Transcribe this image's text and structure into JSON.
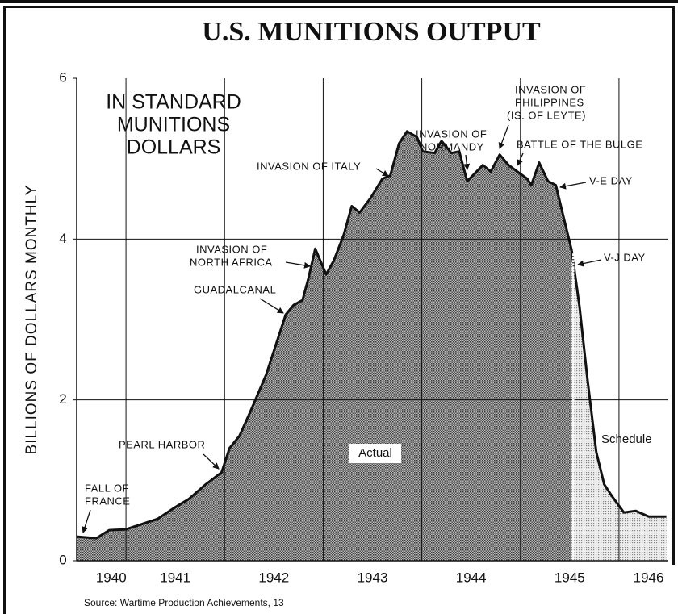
{
  "chart_data": {
    "type": "area",
    "title": "U.S. MUNITIONS OUTPUT",
    "subtitle": [
      "IN STANDARD",
      "MUNITIONS",
      "DOLLARS"
    ],
    "ylabel": "BILLIONS OF DOLLARS MONTHLY",
    "source": "Source: Wartime Production Achievements, 13",
    "xlim": [
      1940.5,
      1946.5
    ],
    "ylim": [
      0,
      6
    ],
    "yticks": [
      0,
      2,
      4,
      6
    ],
    "xgrid": [
      1941,
      1942,
      1943,
      1944,
      1945,
      1946
    ],
    "xticks": [
      {
        "value": 1940.85,
        "label": "1940"
      },
      {
        "value": 1941.5,
        "label": "1941"
      },
      {
        "value": 1942.5,
        "label": "1942"
      },
      {
        "value": 1943.5,
        "label": "1943"
      },
      {
        "value": 1944.5,
        "label": "1944"
      },
      {
        "value": 1945.5,
        "label": "1945"
      },
      {
        "value": 1946.3,
        "label": "1946"
      }
    ],
    "grid": true,
    "series": [
      {
        "name": "Actual",
        "color": "#8a8a8a",
        "x": [
          1940.5,
          1940.7,
          1940.83,
          1941.0,
          1941.15,
          1941.32,
          1941.48,
          1941.64,
          1941.81,
          1941.97,
          1942.05,
          1942.15,
          1942.26,
          1942.42,
          1942.62,
          1942.7,
          1942.79,
          1942.85,
          1942.92,
          1943.03,
          1943.11,
          1943.21,
          1943.29,
          1943.37,
          1943.48,
          1943.6,
          1943.68,
          1943.77,
          1943.85,
          1943.95,
          1944.01,
          1944.13,
          1944.2,
          1944.3,
          1944.38,
          1944.46,
          1944.54,
          1944.62,
          1944.7,
          1944.79,
          1944.88,
          1944.99,
          1945.07,
          1945.11,
          1945.19,
          1945.28,
          1945.36,
          1945.44,
          1945.52
        ],
        "values": [
          0.3,
          0.28,
          0.38,
          0.39,
          0.45,
          0.52,
          0.65,
          0.77,
          0.95,
          1.1,
          1.4,
          1.55,
          1.85,
          2.31,
          3.06,
          3.18,
          3.24,
          3.51,
          3.88,
          3.56,
          3.74,
          4.06,
          4.41,
          4.33,
          4.51,
          4.75,
          4.79,
          5.19,
          5.34,
          5.27,
          5.09,
          5.07,
          5.22,
          5.07,
          5.09,
          4.72,
          4.82,
          4.92,
          4.84,
          5.05,
          4.92,
          4.82,
          4.75,
          4.67,
          4.95,
          4.72,
          4.67,
          4.26,
          3.86
        ]
      },
      {
        "name": "Schedule",
        "color": "#cfcfcf",
        "x": [
          1945.52,
          1945.6,
          1945.68,
          1945.77,
          1945.85,
          1945.93,
          1946.05,
          1946.17,
          1946.3,
          1946.48
        ],
        "values": [
          3.86,
          3.16,
          2.26,
          1.35,
          0.95,
          0.8,
          0.6,
          0.62,
          0.55,
          0.55
        ]
      }
    ],
    "annotations": [
      [
        "FALL OF",
        "FRANCE"
      ],
      [
        "PEARL HARBOR"
      ],
      [
        "GUADALCANAL"
      ],
      [
        "INVASION OF",
        "NORTH AFRICA"
      ],
      [
        "INVASION OF ITALY"
      ],
      [
        "INVASION OF",
        "NORMANDY"
      ],
      [
        "INVASION OF",
        "PHILIPPINES",
        "(IS. OF LEYTE)"
      ],
      [
        "BATTLE OF THE BULGE"
      ],
      [
        "V-E DAY"
      ],
      [
        "V-J DAY"
      ]
    ]
  }
}
